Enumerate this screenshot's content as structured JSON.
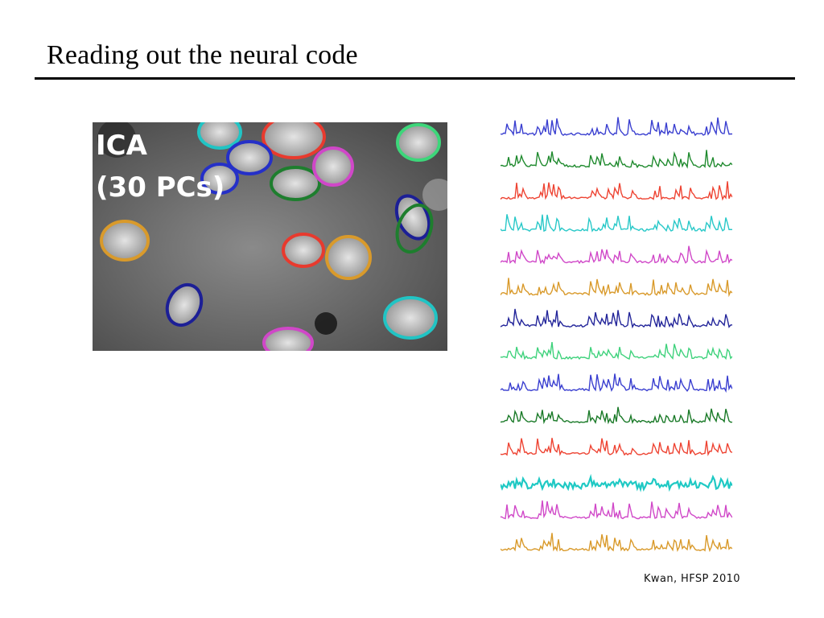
{
  "slide": {
    "title": "Reading out the neural code",
    "citation": "Kwan, HFSP 2010"
  },
  "figure": {
    "panel_label_line1": "ICA",
    "panel_label_line2": "(30 PCs)",
    "outline_colors": [
      "#2530c8",
      "#1e7e2e",
      "#e83a2e",
      "#21c4c4",
      "#d047c8",
      "#d99a2b",
      "#1c1f96",
      "#3dd67a"
    ]
  },
  "traces": {
    "colors": [
      "#3a3fd0",
      "#1f8a2e",
      "#ee4433",
      "#28c8c8",
      "#d048c8",
      "#d99a2b",
      "#23259a",
      "#3fd27c",
      "#3a3fd0",
      "#1a7a28",
      "#ee4433",
      "#1fc9c4",
      "#d048c8",
      "#d99a2b"
    ]
  }
}
